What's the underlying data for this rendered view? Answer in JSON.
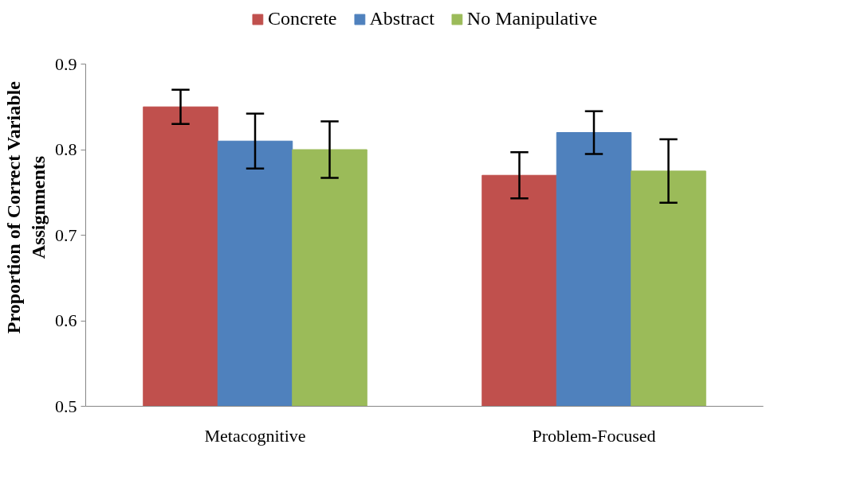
{
  "chart_data": {
    "type": "bar",
    "ylabel": "Proportion of Correct Variable Assignments",
    "categories": [
      "Metacognitive",
      "Problem-Focused"
    ],
    "series": [
      {
        "name": "Concrete",
        "color": "#c0504d",
        "values": [
          0.85,
          0.77
        ],
        "errors": [
          0.02,
          0.027
        ]
      },
      {
        "name": "Abstract",
        "color": "#4f81bd",
        "values": [
          0.81,
          0.82
        ],
        "errors": [
          0.032,
          0.025
        ]
      },
      {
        "name": "No Manipulative",
        "color": "#9bbb59",
        "values": [
          0.8,
          0.775
        ],
        "errors": [
          0.033,
          0.037
        ]
      }
    ],
    "ylim": [
      0.5,
      0.9
    ],
    "yticks": [
      0.5,
      0.6,
      0.7,
      0.8,
      0.9
    ],
    "grid": false,
    "legend": "top"
  }
}
